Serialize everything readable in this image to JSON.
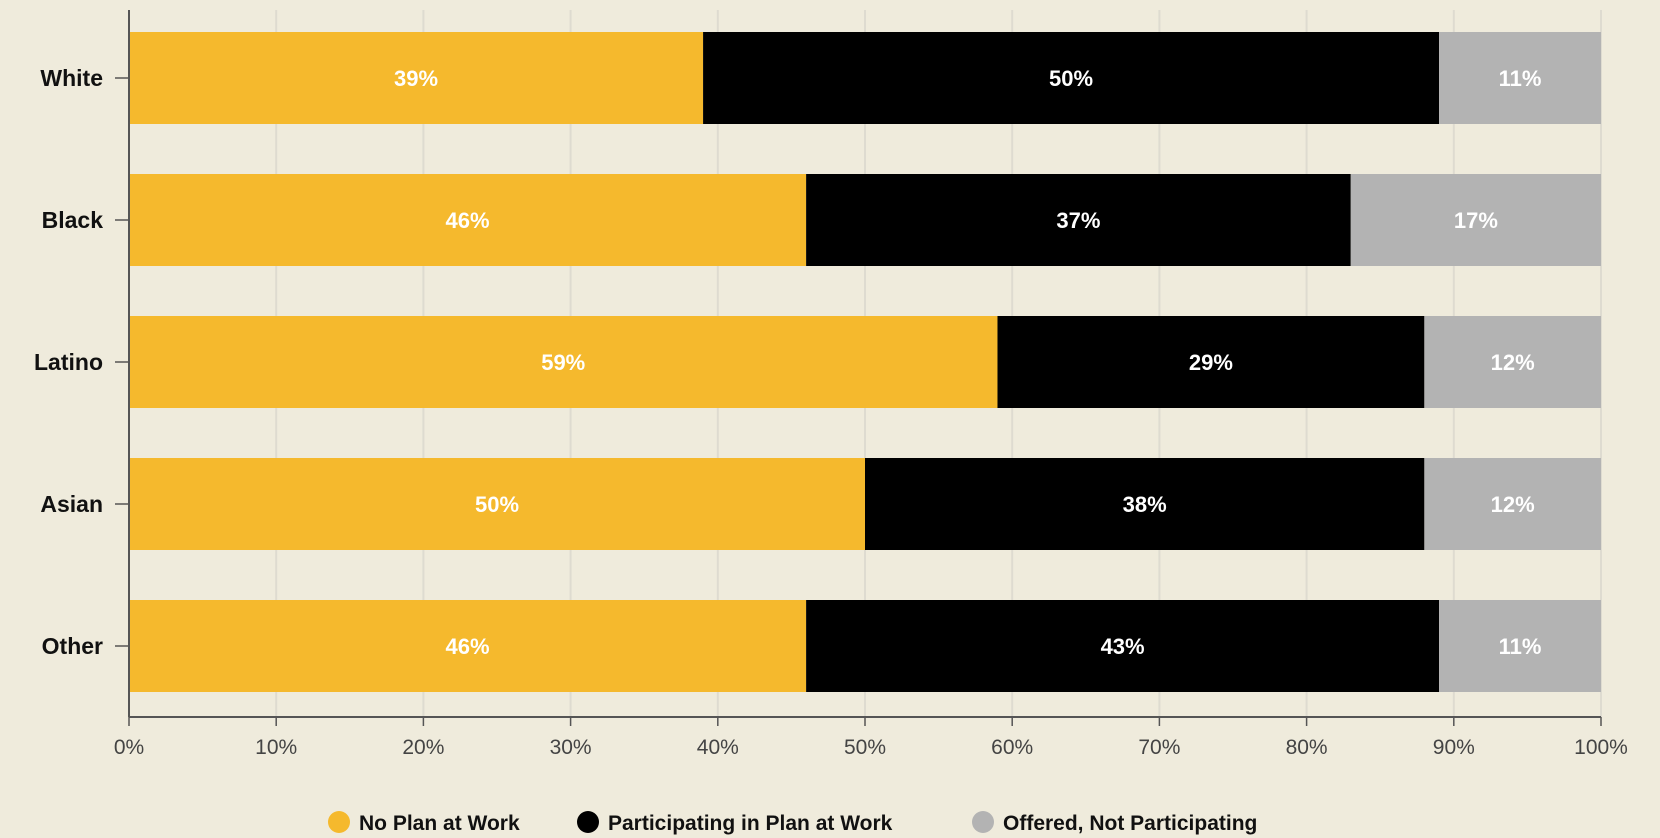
{
  "chart_data": {
    "type": "bar",
    "orientation": "horizontal",
    "stacked": true,
    "categories": [
      "White",
      "Black",
      "Latino",
      "Asian",
      "Other"
    ],
    "series": [
      {
        "name": "No Plan at Work",
        "color": "#f5b92d",
        "values": [
          39,
          46,
          59,
          50,
          46
        ],
        "labels": [
          "39%",
          "46%",
          "59%",
          "50%",
          "46%"
        ]
      },
      {
        "name": "Participating in Plan at Work",
        "color": "#000000",
        "values": [
          50,
          37,
          29,
          38,
          43
        ],
        "labels": [
          "50%",
          "37%",
          "29%",
          "38%",
          "43%"
        ]
      },
      {
        "name": "Offered, Not Participating",
        "color": "#b3b3b3",
        "values": [
          11,
          17,
          12,
          12,
          11
        ],
        "labels": [
          "11%",
          "17%",
          "12%",
          "12%",
          "11%"
        ]
      }
    ],
    "xlim": [
      0,
      100
    ],
    "xticks": [
      "0%",
      "10%",
      "20%",
      "30%",
      "40%",
      "50%",
      "60%",
      "70%",
      "80%",
      "90%",
      "100%"
    ],
    "grid": true,
    "legend": "bottom-center",
    "background": "#efebdc"
  }
}
